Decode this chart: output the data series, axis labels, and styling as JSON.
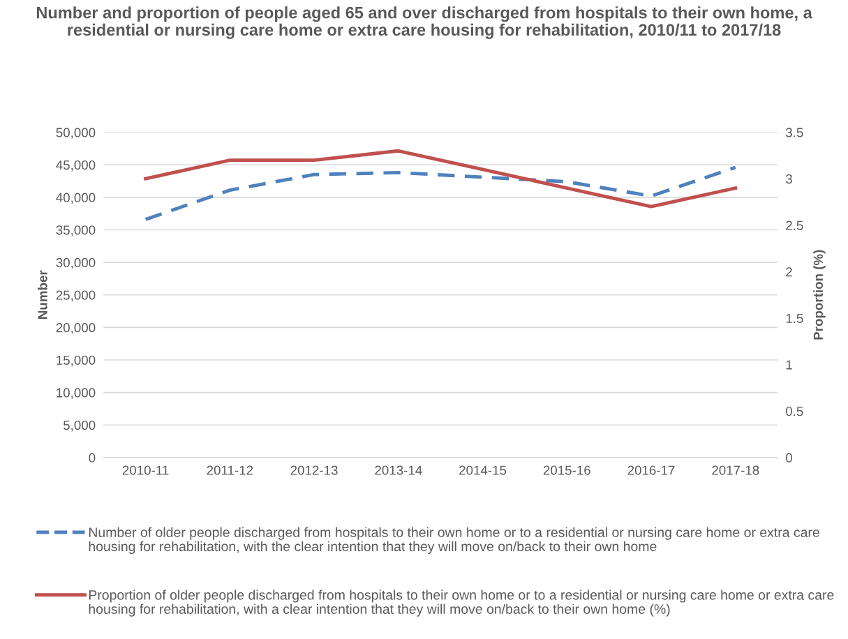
{
  "chart_data": {
    "type": "line",
    "title": "Number and proportion of people aged 65 and over discharged from hospitals to their own home, a residential or nursing care home or extra care housing for rehabilitation, 2010/11 to 2017/18",
    "categories": [
      "2010-11",
      "2011-12",
      "2012-13",
      "2013-14",
      "2014-15",
      "2015-16",
      "2016-17",
      "2017-18"
    ],
    "ylabel": "Number",
    "y2label": "Proportion (%)",
    "series": [
      {
        "name": "Number of older people discharged from hospitals to their own home or to a residential or nursing care home or extra care housing for rehabilitation, with the clear intention that they will move on/back to their own home",
        "color": "#4f81bd",
        "line_style": "dashed",
        "values": [
          36600,
          41100,
          43500,
          43800,
          43100,
          42400,
          40200,
          44600
        ]
      },
      {
        "name": "Proportion of older people discharged from hospitals to their own home or to a residential or nursing care home or extra care housing for rehabilitation, with a clear intention that they will move on/back to their own home (%)",
        "color": "#c0504d",
        "line_style": "solid",
        "axis": "y2",
        "values": [
          3.0,
          3.2,
          3.2,
          3.3,
          3.1,
          2.9,
          2.7,
          2.9
        ]
      }
    ],
    "ylim": [
      0,
      50000
    ],
    "yticks": [
      {
        "value": 0,
        "label": "0"
      },
      {
        "value": 5000,
        "label": "5,000"
      },
      {
        "value": 10000,
        "label": "10,000"
      },
      {
        "value": 15000,
        "label": "15,000"
      },
      {
        "value": 20000,
        "label": "20,000"
      },
      {
        "value": 25000,
        "label": "25,000"
      },
      {
        "value": 30000,
        "label": "30,000"
      },
      {
        "value": 35000,
        "label": "35,000"
      },
      {
        "value": 40000,
        "label": "40,000"
      },
      {
        "value": 45000,
        "label": "45,000"
      },
      {
        "value": 50000,
        "label": "50,000"
      }
    ],
    "y2lim": [
      0,
      3.5
    ],
    "y2ticks": [
      0,
      0.5,
      1,
      1.5,
      2,
      2.5,
      3,
      3.5
    ],
    "grid": "y",
    "legend": "bottom",
    "marker": "none"
  }
}
